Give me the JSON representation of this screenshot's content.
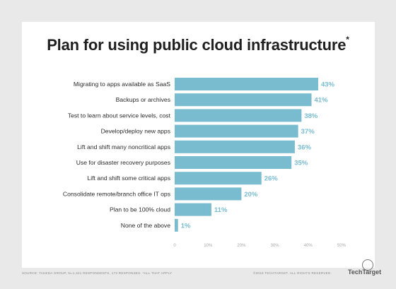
{
  "title": "Plan for using public cloud infrastructure",
  "title_mark": "*",
  "footer": {
    "source": "SOURCE: TAKEDA GROUP, N=1,421 RESPONDENTS, 173 RESPONSES. *ALL THAT APPLY",
    "copyright": "©2019 TECHTARGET. ALL RIGHTS RESERVED.",
    "brand": "TechTarget"
  },
  "colors": {
    "bar": "#79bcd0",
    "label": "#79bcd0",
    "text": "#2b2b2b",
    "tick": "#a8a8a8",
    "background": "#e9e9e9",
    "card": "#ffffff"
  },
  "chart_data": {
    "type": "bar",
    "orientation": "horizontal",
    "categories": [
      "Migrating to apps available as SaaS",
      "Backups or archives",
      "Test to learn about service levels, cost",
      "Develop/deploy new apps",
      "Lift and shift many noncritical apps",
      "Use for disaster recovery purposes",
      "Lift and shift some critical apps",
      "Consolidate remote/branch office IT ops",
      "Plan to be 100% cloud",
      "None of the above"
    ],
    "values": [
      43,
      41,
      38,
      37,
      36,
      35,
      26,
      20,
      11,
      1
    ],
    "value_labels": [
      "43%",
      "41%",
      "38%",
      "37%",
      "36%",
      "35%",
      "26%",
      "20%",
      "11%",
      "1%"
    ],
    "xlim": [
      0,
      50
    ],
    "xticks": [
      "0",
      "10%",
      "20%",
      "30%",
      "40%",
      "50%"
    ],
    "grid": false,
    "legend": "none"
  }
}
